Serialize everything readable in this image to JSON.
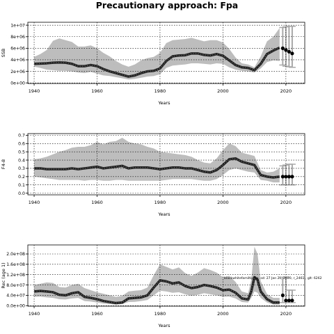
{
  "title": "Precautionary approach: Fpa",
  "chart_data": [
    {
      "type": "line",
      "name": "ssb-panel",
      "xlabel": "Years",
      "ylabel": "SSB",
      "xlim": [
        1938,
        2026
      ],
      "ylim": [
        -100000,
        10500000
      ],
      "xticks": [
        1940,
        1960,
        1980,
        2000,
        2020
      ],
      "xtick_labels": [
        "1940",
        "1960",
        "1980",
        "2000",
        "2020"
      ],
      "yticks": [
        0,
        2000000,
        4000000,
        6000000,
        8000000,
        10000000
      ],
      "ytick_labels": [
        "0e+00",
        "2e+06",
        "4e+06",
        "6e+06",
        "8e+06",
        "1e+07"
      ],
      "grid": true,
      "x": [
        1940,
        1942,
        1944,
        1946,
        1948,
        1950,
        1952,
        1954,
        1956,
        1958,
        1960,
        1962,
        1964,
        1966,
        1968,
        1970,
        1972,
        1974,
        1976,
        1978,
        1980,
        1982,
        1984,
        1986,
        1988,
        1990,
        1992,
        1994,
        1996,
        1998,
        2000,
        2002,
        2004,
        2006,
        2008,
        2010,
        2012,
        2014,
        2016,
        2018
      ],
      "median": [
        3300000,
        3350000,
        3400000,
        3500000,
        3550000,
        3500000,
        3300000,
        2900000,
        2900000,
        3100000,
        2900000,
        2400000,
        2000000,
        1700000,
        1400000,
        1100000,
        1300000,
        1700000,
        2000000,
        2100000,
        2500000,
        3800000,
        4600000,
        4750000,
        4800000,
        5100000,
        5100000,
        4850000,
        4750000,
        5000000,
        4700000,
        3900000,
        3100000,
        2700000,
        2600000,
        2200000,
        3300000,
        5000000,
        5600000,
        6100000
      ],
      "upper": [
        4500000,
        5000000,
        5700000,
        7300000,
        7700000,
        7400000,
        7100000,
        6300000,
        6300000,
        6500000,
        6000000,
        5200000,
        4600000,
        3800000,
        3200000,
        2800000,
        3200000,
        3900000,
        4300000,
        4500000,
        5200000,
        6900000,
        7400000,
        7500000,
        7600000,
        7800000,
        7500000,
        7200000,
        7400000,
        7400000,
        7000000,
        5900000,
        4400000,
        3400000,
        3200000,
        2700000,
        4600000,
        7200000,
        8000000,
        9500000
      ],
      "lower": [
        2800000,
        2600000,
        2300000,
        2200000,
        2100000,
        2100000,
        2000000,
        1800000,
        1700000,
        1900000,
        1600000,
        1300000,
        1200000,
        1000000,
        800000,
        600000,
        700000,
        900000,
        1100000,
        1200000,
        1500000,
        2600000,
        3000000,
        3100000,
        3200000,
        3400000,
        3400000,
        3300000,
        3200000,
        3400000,
        3300000,
        2700000,
        2300000,
        2100000,
        2000000,
        1800000,
        2500000,
        3600000,
        3900000,
        3800000
      ],
      "proj_x": [
        2019,
        2020,
        2021,
        2022
      ],
      "proj_median": [
        6000000,
        5700000,
        5400000,
        5100000
      ],
      "proj_upper": [
        9600000,
        9700000,
        9800000,
        9800000
      ],
      "proj_lower": [
        3100000,
        2900000,
        2800000,
        2700000
      ]
    },
    {
      "type": "line",
      "name": "f-panel",
      "xlabel": "Years",
      "ylabel": "F4-8",
      "xlim": [
        1938,
        2026
      ],
      "ylim": [
        -0.02,
        0.72
      ],
      "xticks": [
        1940,
        1960,
        1980,
        2000,
        2020
      ],
      "xtick_labels": [
        "1940",
        "1960",
        "1980",
        "2000",
        "2020"
      ],
      "yticks": [
        0,
        0.1,
        0.2,
        0.3,
        0.4,
        0.5,
        0.6,
        0.7
      ],
      "ytick_labels": [
        "0.0",
        "0.1",
        "0.2",
        "0.3",
        "0.4",
        "0.5",
        "0.6",
        "0.7"
      ],
      "grid": true,
      "x": [
        1940,
        1942,
        1944,
        1946,
        1948,
        1950,
        1952,
        1954,
        1956,
        1958,
        1960,
        1962,
        1964,
        1966,
        1968,
        1970,
        1972,
        1974,
        1976,
        1978,
        1980,
        1982,
        1984,
        1986,
        1988,
        1990,
        1992,
        1994,
        1996,
        1998,
        2000,
        2002,
        2004,
        2006,
        2008,
        2010,
        2012,
        2014,
        2016,
        2018
      ],
      "median": [
        0.3,
        0.3,
        0.29,
        0.29,
        0.29,
        0.29,
        0.3,
        0.29,
        0.3,
        0.31,
        0.32,
        0.3,
        0.31,
        0.32,
        0.33,
        0.3,
        0.31,
        0.31,
        0.31,
        0.3,
        0.29,
        0.3,
        0.31,
        0.31,
        0.3,
        0.3,
        0.28,
        0.26,
        0.25,
        0.28,
        0.34,
        0.41,
        0.42,
        0.38,
        0.36,
        0.34,
        0.22,
        0.2,
        0.19,
        0.2
      ],
      "upper": [
        0.41,
        0.42,
        0.44,
        0.47,
        0.5,
        0.52,
        0.55,
        0.56,
        0.56,
        0.58,
        0.62,
        0.59,
        0.62,
        0.63,
        0.67,
        0.62,
        0.6,
        0.59,
        0.56,
        0.54,
        0.5,
        0.49,
        0.48,
        0.47,
        0.46,
        0.44,
        0.4,
        0.37,
        0.36,
        0.42,
        0.52,
        0.6,
        0.57,
        0.49,
        0.47,
        0.45,
        0.28,
        0.25,
        0.26,
        0.3
      ],
      "lower": [
        0.2,
        0.19,
        0.18,
        0.17,
        0.16,
        0.16,
        0.16,
        0.16,
        0.15,
        0.16,
        0.16,
        0.15,
        0.15,
        0.16,
        0.16,
        0.15,
        0.15,
        0.15,
        0.15,
        0.15,
        0.15,
        0.16,
        0.17,
        0.17,
        0.17,
        0.17,
        0.16,
        0.15,
        0.15,
        0.17,
        0.22,
        0.28,
        0.3,
        0.28,
        0.26,
        0.25,
        0.16,
        0.15,
        0.13,
        0.13
      ],
      "proj_x": [
        2019,
        2020,
        2021,
        2022
      ],
      "proj_median": [
        0.2,
        0.2,
        0.2,
        0.2
      ],
      "proj_upper": [
        0.33,
        0.34,
        0.35,
        0.35
      ],
      "proj_lower": [
        0.1,
        0.1,
        0.1,
        0.1
      ]
    },
    {
      "type": "line",
      "name": "recruitment-panel",
      "xlabel": "Years",
      "ylabel": "Rec (age 1)",
      "xlim": [
        1938,
        2026
      ],
      "ylim": [
        -2000000,
        235000000
      ],
      "xticks": [
        1940,
        1960,
        1980,
        2000,
        2020
      ],
      "xtick_labels": [
        "1940",
        "1960",
        "1980",
        "2000",
        "2020"
      ],
      "yticks": [
        0,
        40000000,
        80000000,
        120000000,
        160000000,
        200000000
      ],
      "ytick_labels": [
        "0.0e+00",
        "4.0e+07",
        "8.0e+07",
        "1.2e+08",
        "1.6e+08",
        "2.0e+08"
      ],
      "grid": true,
      "x": [
        1940,
        1942,
        1944,
        1946,
        1948,
        1950,
        1952,
        1954,
        1956,
        1958,
        1960,
        1962,
        1964,
        1966,
        1968,
        1970,
        1972,
        1974,
        1976,
        1978,
        1980,
        1982,
        1984,
        1986,
        1988,
        1990,
        1992,
        1994,
        1996,
        1998,
        2000,
        2002,
        2004,
        2006,
        2008,
        2009,
        2010,
        2011,
        2012,
        2014,
        2016,
        2018
      ],
      "median": [
        55000000,
        57000000,
        55000000,
        52000000,
        42000000,
        40000000,
        48000000,
        52000000,
        34000000,
        30000000,
        25000000,
        18000000,
        14000000,
        10000000,
        12000000,
        28000000,
        30000000,
        32000000,
        40000000,
        70000000,
        98000000,
        94000000,
        86000000,
        90000000,
        76000000,
        68000000,
        72000000,
        80000000,
        76000000,
        70000000,
        60000000,
        62000000,
        50000000,
        28000000,
        24000000,
        55000000,
        110000000,
        100000000,
        55000000,
        25000000,
        12000000,
        12000000
      ],
      "upper": [
        80000000,
        85000000,
        90000000,
        88000000,
        72000000,
        70000000,
        80000000,
        85000000,
        68000000,
        60000000,
        52000000,
        46000000,
        40000000,
        34000000,
        38000000,
        55000000,
        58000000,
        60000000,
        70000000,
        118000000,
        160000000,
        150000000,
        140000000,
        148000000,
        126000000,
        115000000,
        128000000,
        145000000,
        138000000,
        128000000,
        110000000,
        115000000,
        92000000,
        55000000,
        48000000,
        100000000,
        228000000,
        200000000,
        95000000,
        45000000,
        30000000,
        30000000
      ],
      "lower": [
        34000000,
        35000000,
        32000000,
        30000000,
        25000000,
        24000000,
        28000000,
        30000000,
        18000000,
        16000000,
        12000000,
        8000000,
        6000000,
        4000000,
        6000000,
        14000000,
        15000000,
        18000000,
        22000000,
        40000000,
        58000000,
        55000000,
        50000000,
        52000000,
        44000000,
        38000000,
        42000000,
        48000000,
        44000000,
        40000000,
        34000000,
        35000000,
        28000000,
        14000000,
        12000000,
        30000000,
        55000000,
        50000000,
        30000000,
        12000000,
        4000000,
        4000000
      ],
      "proj_x": [
        2019,
        2020,
        2021,
        2022
      ],
      "proj_median": [
        40000000,
        20000000,
        20000000,
        20000000
      ],
      "proj_upper": [
        110000000,
        110000000,
        60000000,
        60000000
      ],
      "proj_lower": [
        12000000,
        12000000,
        12000000,
        12000000
      ],
      "annotation": "blackwhitefamiltip.fig. sd: 27 Jan 2L, 2020, r_2461 , glt: 6262"
    }
  ]
}
